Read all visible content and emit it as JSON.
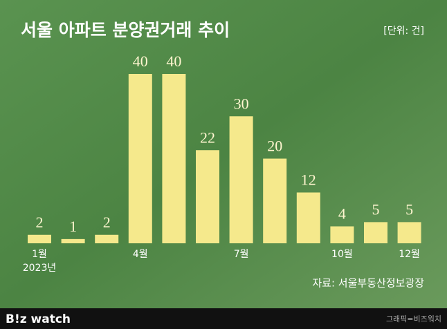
{
  "chart_data": {
    "type": "bar",
    "title": "서울 아파트 분양권거래 추이",
    "unit_label": "[단위: 건]",
    "categories": [
      "1월",
      null,
      null,
      "4월",
      null,
      null,
      "7월",
      null,
      null,
      "10월",
      null,
      "12월"
    ],
    "year_label": "2023년",
    "values": [
      2,
      1,
      2,
      40,
      40,
      22,
      30,
      20,
      12,
      4,
      5,
      5
    ],
    "color": "#f5e98c",
    "source": "자료: 서울부동산정보광장"
  },
  "footer": {
    "brand": "B!z watch",
    "credit": "그래픽=비즈워치"
  }
}
